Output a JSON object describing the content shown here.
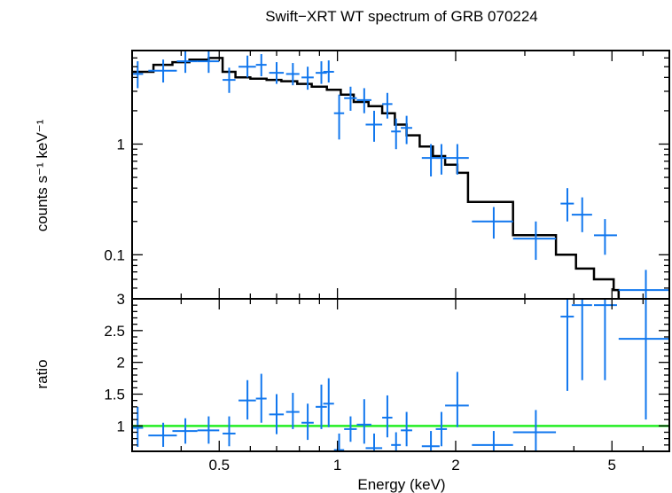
{
  "chart_data": [
    {
      "type": "scatter",
      "panel": "spectrum",
      "title": "Swift−XRT WT spectrum of GRB 070224",
      "xlabel": "Energy (keV)",
      "ylabel": "counts s⁻¹ keV⁻¹",
      "xscale": "log",
      "yscale": "log",
      "xlim": [
        0.3,
        7.0
      ],
      "ylim": [
        0.04,
        7.0
      ],
      "yticks": [
        {
          "value": 1,
          "label": "1"
        },
        {
          "value": 0.1,
          "label": "0.1"
        }
      ],
      "data_color": "#1177ee",
      "model_color": "#000000",
      "data": [
        {
          "x": 0.31,
          "xlo": 0.3,
          "xhi": 0.32,
          "y": 4.3,
          "ylo": 3.2,
          "yhi": 5.6
        },
        {
          "x": 0.36,
          "xlo": 0.33,
          "xhi": 0.39,
          "y": 4.6,
          "ylo": 3.6,
          "yhi": 5.8
        },
        {
          "x": 0.41,
          "xlo": 0.39,
          "xhi": 0.44,
          "y": 5.6,
          "ylo": 4.4,
          "yhi": 7.0
        },
        {
          "x": 0.47,
          "xlo": 0.44,
          "xhi": 0.5,
          "y": 5.6,
          "ylo": 4.4,
          "yhi": 7.0
        },
        {
          "x": 0.53,
          "xlo": 0.51,
          "xhi": 0.55,
          "y": 3.8,
          "ylo": 2.9,
          "yhi": 4.9
        },
        {
          "x": 0.59,
          "xlo": 0.56,
          "xhi": 0.62,
          "y": 5.0,
          "ylo": 4.0,
          "yhi": 6.3
        },
        {
          "x": 0.64,
          "xlo": 0.62,
          "xhi": 0.66,
          "y": 5.2,
          "ylo": 4.1,
          "yhi": 6.5
        },
        {
          "x": 0.7,
          "xlo": 0.67,
          "xhi": 0.73,
          "y": 4.4,
          "ylo": 3.5,
          "yhi": 5.5
        },
        {
          "x": 0.77,
          "xlo": 0.74,
          "xhi": 0.8,
          "y": 4.3,
          "ylo": 3.4,
          "yhi": 5.4
        },
        {
          "x": 0.84,
          "xlo": 0.81,
          "xhi": 0.87,
          "y": 4.0,
          "ylo": 3.1,
          "yhi": 5.0
        },
        {
          "x": 0.91,
          "xlo": 0.88,
          "xhi": 0.94,
          "y": 4.4,
          "ylo": 3.5,
          "yhi": 5.6
        },
        {
          "x": 0.95,
          "xlo": 0.92,
          "xhi": 0.98,
          "y": 4.5,
          "ylo": 3.6,
          "yhi": 5.7
        },
        {
          "x": 1.01,
          "xlo": 0.98,
          "xhi": 1.04,
          "y": 1.9,
          "ylo": 1.1,
          "yhi": 2.8
        },
        {
          "x": 1.08,
          "xlo": 1.04,
          "xhi": 1.12,
          "y": 2.6,
          "ylo": 2.0,
          "yhi": 3.3
        },
        {
          "x": 1.17,
          "xlo": 1.12,
          "xhi": 1.22,
          "y": 2.5,
          "ylo": 1.9,
          "yhi": 3.2
        },
        {
          "x": 1.24,
          "xlo": 1.18,
          "xhi": 1.3,
          "y": 1.5,
          "ylo": 1.05,
          "yhi": 2.0
        },
        {
          "x": 1.34,
          "xlo": 1.3,
          "xhi": 1.38,
          "y": 2.3,
          "ylo": 1.7,
          "yhi": 2.9
        },
        {
          "x": 1.41,
          "xlo": 1.37,
          "xhi": 1.45,
          "y": 1.3,
          "ylo": 0.9,
          "yhi": 1.7
        },
        {
          "x": 1.5,
          "xlo": 1.45,
          "xhi": 1.55,
          "y": 1.4,
          "ylo": 1.0,
          "yhi": 1.8
        },
        {
          "x": 1.73,
          "xlo": 1.64,
          "xhi": 1.82,
          "y": 0.75,
          "ylo": 0.51,
          "yhi": 1.0
        },
        {
          "x": 1.84,
          "xlo": 1.78,
          "xhi": 1.9,
          "y": 0.75,
          "ylo": 0.53,
          "yhi": 1.0
        },
        {
          "x": 2.02,
          "xlo": 1.88,
          "xhi": 2.16,
          "y": 0.75,
          "ylo": 0.53,
          "yhi": 1.0
        },
        {
          "x": 2.5,
          "xlo": 2.2,
          "xhi": 2.8,
          "y": 0.2,
          "ylo": 0.14,
          "yhi": 0.27
        },
        {
          "x": 3.2,
          "xlo": 2.8,
          "xhi": 3.6,
          "y": 0.14,
          "ylo": 0.09,
          "yhi": 0.2
        },
        {
          "x": 3.85,
          "xlo": 3.7,
          "xhi": 4.0,
          "y": 0.29,
          "ylo": 0.2,
          "yhi": 0.4
        },
        {
          "x": 4.2,
          "xlo": 3.95,
          "xhi": 4.45,
          "y": 0.23,
          "ylo": 0.16,
          "yhi": 0.33
        },
        {
          "x": 4.8,
          "xlo": 4.5,
          "xhi": 5.15,
          "y": 0.15,
          "ylo": 0.1,
          "yhi": 0.21
        },
        {
          "x": 6.1,
          "xlo": 5.2,
          "xhi": 7.0,
          "y": 0.048,
          "ylo": 0.028,
          "yhi": 0.073
        }
      ],
      "model": [
        {
          "x0": 0.3,
          "x1": 0.34,
          "y": 4.5
        },
        {
          "x0": 0.34,
          "x1": 0.38,
          "y": 5.2
        },
        {
          "x0": 0.38,
          "x1": 0.42,
          "y": 5.5
        },
        {
          "x0": 0.42,
          "x1": 0.47,
          "y": 5.8
        },
        {
          "x0": 0.47,
          "x1": 0.51,
          "y": 6.0
        },
        {
          "x0": 0.51,
          "x1": 0.55,
          "y": 4.5
        },
        {
          "x0": 0.55,
          "x1": 0.6,
          "y": 4.0
        },
        {
          "x0": 0.6,
          "x1": 0.66,
          "y": 3.9
        },
        {
          "x0": 0.66,
          "x1": 0.72,
          "y": 3.8
        },
        {
          "x0": 0.72,
          "x1": 0.79,
          "y": 3.7
        },
        {
          "x0": 0.79,
          "x1": 0.86,
          "y": 3.5
        },
        {
          "x0": 0.86,
          "x1": 0.94,
          "y": 3.3
        },
        {
          "x0": 0.94,
          "x1": 1.02,
          "y": 3.1
        },
        {
          "x0": 1.02,
          "x1": 1.1,
          "y": 2.8
        },
        {
          "x0": 1.1,
          "x1": 1.2,
          "y": 2.4
        },
        {
          "x0": 1.2,
          "x1": 1.3,
          "y": 2.2
        },
        {
          "x0": 1.3,
          "x1": 1.4,
          "y": 1.9
        },
        {
          "x0": 1.4,
          "x1": 1.5,
          "y": 1.5
        },
        {
          "x0": 1.5,
          "x1": 1.62,
          "y": 1.2
        },
        {
          "x0": 1.62,
          "x1": 1.75,
          "y": 0.95
        },
        {
          "x0": 1.75,
          "x1": 1.88,
          "y": 0.78
        },
        {
          "x0": 1.88,
          "x1": 2.02,
          "y": 0.65
        },
        {
          "x0": 2.02,
          "x1": 2.15,
          "y": 0.55
        },
        {
          "x0": 2.15,
          "x1": 2.8,
          "y": 0.3
        },
        {
          "x0": 2.8,
          "x1": 3.6,
          "y": 0.15
        },
        {
          "x0": 3.6,
          "x1": 4.05,
          "y": 0.1
        },
        {
          "x0": 4.05,
          "x1": 4.5,
          "y": 0.075
        },
        {
          "x0": 4.5,
          "x1": 5.05,
          "y": 0.06
        },
        {
          "x0": 5.05,
          "x1": 5.2,
          "y": 0.048
        }
      ]
    },
    {
      "type": "scatter",
      "panel": "ratio",
      "xlabel": "Energy (keV)",
      "ylabel": "ratio",
      "xscale": "log",
      "yscale": "linear",
      "xlim": [
        0.3,
        7.0
      ],
      "ylim": [
        0.6,
        3.0
      ],
      "yticks": [
        {
          "value": 3,
          "label": "3"
        },
        {
          "value": 2.5,
          "label": "2.5"
        },
        {
          "value": 2,
          "label": "2"
        },
        {
          "value": 1.5,
          "label": "1.5"
        },
        {
          "value": 1,
          "label": "1"
        }
      ],
      "xticks": [
        {
          "value": 0.5,
          "label": "0.5"
        },
        {
          "value": 1,
          "label": "1"
        },
        {
          "value": 2,
          "label": "2"
        },
        {
          "value": 5,
          "label": "5"
        }
      ],
      "reference_line": {
        "y": 1.0,
        "color": "#22ee22"
      },
      "data_color": "#1177ee",
      "data": [
        {
          "x": 0.31,
          "xlo": 0.3,
          "xhi": 0.32,
          "y": 0.97,
          "ylo": 0.67,
          "yhi": 1.3
        },
        {
          "x": 0.36,
          "xlo": 0.33,
          "xhi": 0.39,
          "y": 0.85,
          "ylo": 0.67,
          "yhi": 1.05
        },
        {
          "x": 0.41,
          "xlo": 0.38,
          "xhi": 0.44,
          "y": 0.92,
          "ylo": 0.72,
          "yhi": 1.12
        },
        {
          "x": 0.47,
          "xlo": 0.44,
          "xhi": 0.5,
          "y": 0.93,
          "ylo": 0.72,
          "yhi": 1.15
        },
        {
          "x": 0.53,
          "xlo": 0.51,
          "xhi": 0.55,
          "y": 0.88,
          "ylo": 0.68,
          "yhi": 1.15
        },
        {
          "x": 0.59,
          "xlo": 0.56,
          "xhi": 0.62,
          "y": 1.4,
          "ylo": 1.1,
          "yhi": 1.72
        },
        {
          "x": 0.64,
          "xlo": 0.62,
          "xhi": 0.66,
          "y": 1.43,
          "ylo": 1.05,
          "yhi": 1.82
        },
        {
          "x": 0.7,
          "xlo": 0.67,
          "xhi": 0.73,
          "y": 1.18,
          "ylo": 0.87,
          "yhi": 1.5
        },
        {
          "x": 0.77,
          "xlo": 0.74,
          "xhi": 0.8,
          "y": 1.22,
          "ylo": 0.95,
          "yhi": 1.52
        },
        {
          "x": 0.84,
          "xlo": 0.81,
          "xhi": 0.87,
          "y": 1.05,
          "ylo": 0.78,
          "yhi": 1.35
        },
        {
          "x": 0.91,
          "xlo": 0.88,
          "xhi": 0.94,
          "y": 1.3,
          "ylo": 0.95,
          "yhi": 1.65
        },
        {
          "x": 0.95,
          "xlo": 0.92,
          "xhi": 0.98,
          "y": 1.35,
          "ylo": 0.98,
          "yhi": 1.75
        },
        {
          "x": 1.01,
          "xlo": 0.98,
          "xhi": 1.04,
          "y": 0.62,
          "ylo": 0.5,
          "yhi": 0.88
        },
        {
          "x": 1.08,
          "xlo": 1.04,
          "xhi": 1.12,
          "y": 0.95,
          "ylo": 0.75,
          "yhi": 1.15
        },
        {
          "x": 1.17,
          "xlo": 1.12,
          "xhi": 1.22,
          "y": 1.02,
          "ylo": 0.72,
          "yhi": 1.42
        },
        {
          "x": 1.24,
          "xlo": 1.18,
          "xhi": 1.3,
          "y": 0.65,
          "ylo": 0.5,
          "yhi": 0.88
        },
        {
          "x": 1.34,
          "xlo": 1.3,
          "xhi": 1.38,
          "y": 1.13,
          "ylo": 0.82,
          "yhi": 1.48
        },
        {
          "x": 1.41,
          "xlo": 1.37,
          "xhi": 1.45,
          "y": 0.7,
          "ylo": 0.5,
          "yhi": 0.9
        },
        {
          "x": 1.5,
          "xlo": 1.45,
          "xhi": 1.55,
          "y": 0.93,
          "ylo": 0.68,
          "yhi": 1.22
        },
        {
          "x": 1.73,
          "xlo": 1.64,
          "xhi": 1.82,
          "y": 0.68,
          "ylo": 0.5,
          "yhi": 0.92
        },
        {
          "x": 1.84,
          "xlo": 1.78,
          "xhi": 1.9,
          "y": 0.95,
          "ylo": 0.68,
          "yhi": 1.22
        },
        {
          "x": 2.02,
          "xlo": 1.88,
          "xhi": 2.16,
          "y": 1.32,
          "ylo": 0.98,
          "yhi": 1.85
        },
        {
          "x": 2.5,
          "xlo": 2.2,
          "xhi": 2.8,
          "y": 0.7,
          "ylo": 0.52,
          "yhi": 0.92
        },
        {
          "x": 3.2,
          "xlo": 2.8,
          "xhi": 3.6,
          "y": 0.9,
          "ylo": 0.6,
          "yhi": 1.25
        },
        {
          "x": 3.85,
          "xlo": 3.7,
          "xhi": 4.0,
          "y": 2.72,
          "ylo": 1.55,
          "yhi": 3.0
        },
        {
          "x": 4.2,
          "xlo": 3.95,
          "xhi": 4.45,
          "y": 2.9,
          "ylo": 1.72,
          "yhi": 3.0
        },
        {
          "x": 4.8,
          "xlo": 4.5,
          "xhi": 5.15,
          "y": 2.9,
          "ylo": 1.72,
          "yhi": 3.0
        },
        {
          "x": 6.1,
          "xlo": 5.2,
          "xhi": 7.0,
          "y": 2.37,
          "ylo": 1.1,
          "yhi": 3.0
        }
      ]
    }
  ]
}
